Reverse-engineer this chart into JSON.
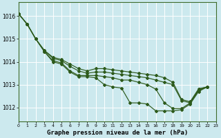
{
  "title": "Graphe pression niveau de la mer (hPa)",
  "bg_color": "#cce9ee",
  "grid_color": "#ffffff",
  "line_color": "#2d5a1b",
  "xlim": [
    0,
    23
  ],
  "ylim": [
    1011.4,
    1016.6
  ],
  "yticks": [
    1012,
    1013,
    1014,
    1015,
    1016
  ],
  "xtick_labels": [
    "0",
    "1",
    "2",
    "3",
    "4",
    "5",
    "6",
    "7",
    "8",
    "9",
    "10",
    "11",
    "12",
    "13",
    "14",
    "15",
    "16",
    "17",
    "18",
    "19",
    "20",
    "21",
    "22",
    "23"
  ],
  "lines": [
    {
      "x": [
        0,
        1,
        2,
        3,
        4,
        5,
        6,
        7,
        8,
        9,
        10,
        11,
        12,
        13,
        14,
        15,
        16,
        17,
        18,
        19,
        20,
        21,
        22
      ],
      "y": [
        1016.1,
        1015.65,
        1015.0,
        1014.45,
        1014.0,
        1013.9,
        1013.55,
        1013.35,
        1013.35,
        1013.3,
        1013.0,
        1012.9,
        1012.85,
        1012.2,
        1012.2,
        1012.15,
        1011.85,
        1011.85,
        1011.85,
        1011.9,
        1012.15,
        1012.7,
        1012.9
      ]
    },
    {
      "x": [
        0,
        1,
        2,
        3,
        4,
        5,
        6,
        7,
        8,
        9,
        10,
        11,
        12,
        13,
        14,
        15,
        16,
        17,
        18,
        19,
        20,
        21,
        22
      ],
      "y": [
        1016.1,
        1015.65,
        1015.0,
        1014.45,
        1014.05,
        1013.95,
        1013.6,
        1013.4,
        1013.4,
        1013.4,
        1013.35,
        1013.3,
        1013.2,
        1013.2,
        1013.1,
        1013.0,
        1012.8,
        1012.2,
        1011.95,
        1011.95,
        1012.2,
        1012.75,
        1012.9
      ]
    },
    {
      "x": [
        0,
        1,
        2,
        3,
        4,
        5,
        6,
        7,
        8,
        9,
        10,
        11,
        12,
        13,
        14,
        15,
        16,
        17,
        18,
        19,
        20,
        21,
        22
      ],
      "y": [
        1016.1,
        1015.65,
        1015.0,
        1014.5,
        1014.15,
        1014.05,
        1013.8,
        1013.6,
        1013.5,
        1013.55,
        1013.55,
        1013.5,
        1013.45,
        1013.4,
        1013.35,
        1013.3,
        1013.2,
        1013.1,
        1013.0,
        1012.3,
        1012.2,
        1012.8,
        1012.9
      ]
    },
    {
      "x": [
        0,
        1,
        2,
        3,
        4,
        5,
        6,
        7,
        8,
        9,
        10,
        11,
        12,
        13,
        14,
        15,
        16,
        17,
        18,
        19,
        20,
        21,
        22
      ],
      "y": [
        1016.1,
        1015.65,
        1015.0,
        1014.5,
        1014.2,
        1014.1,
        1013.9,
        1013.7,
        1013.6,
        1013.7,
        1013.7,
        1013.65,
        1013.6,
        1013.55,
        1013.5,
        1013.45,
        1013.4,
        1013.3,
        1013.1,
        1012.35,
        1012.25,
        1012.82,
        1012.9
      ]
    }
  ]
}
